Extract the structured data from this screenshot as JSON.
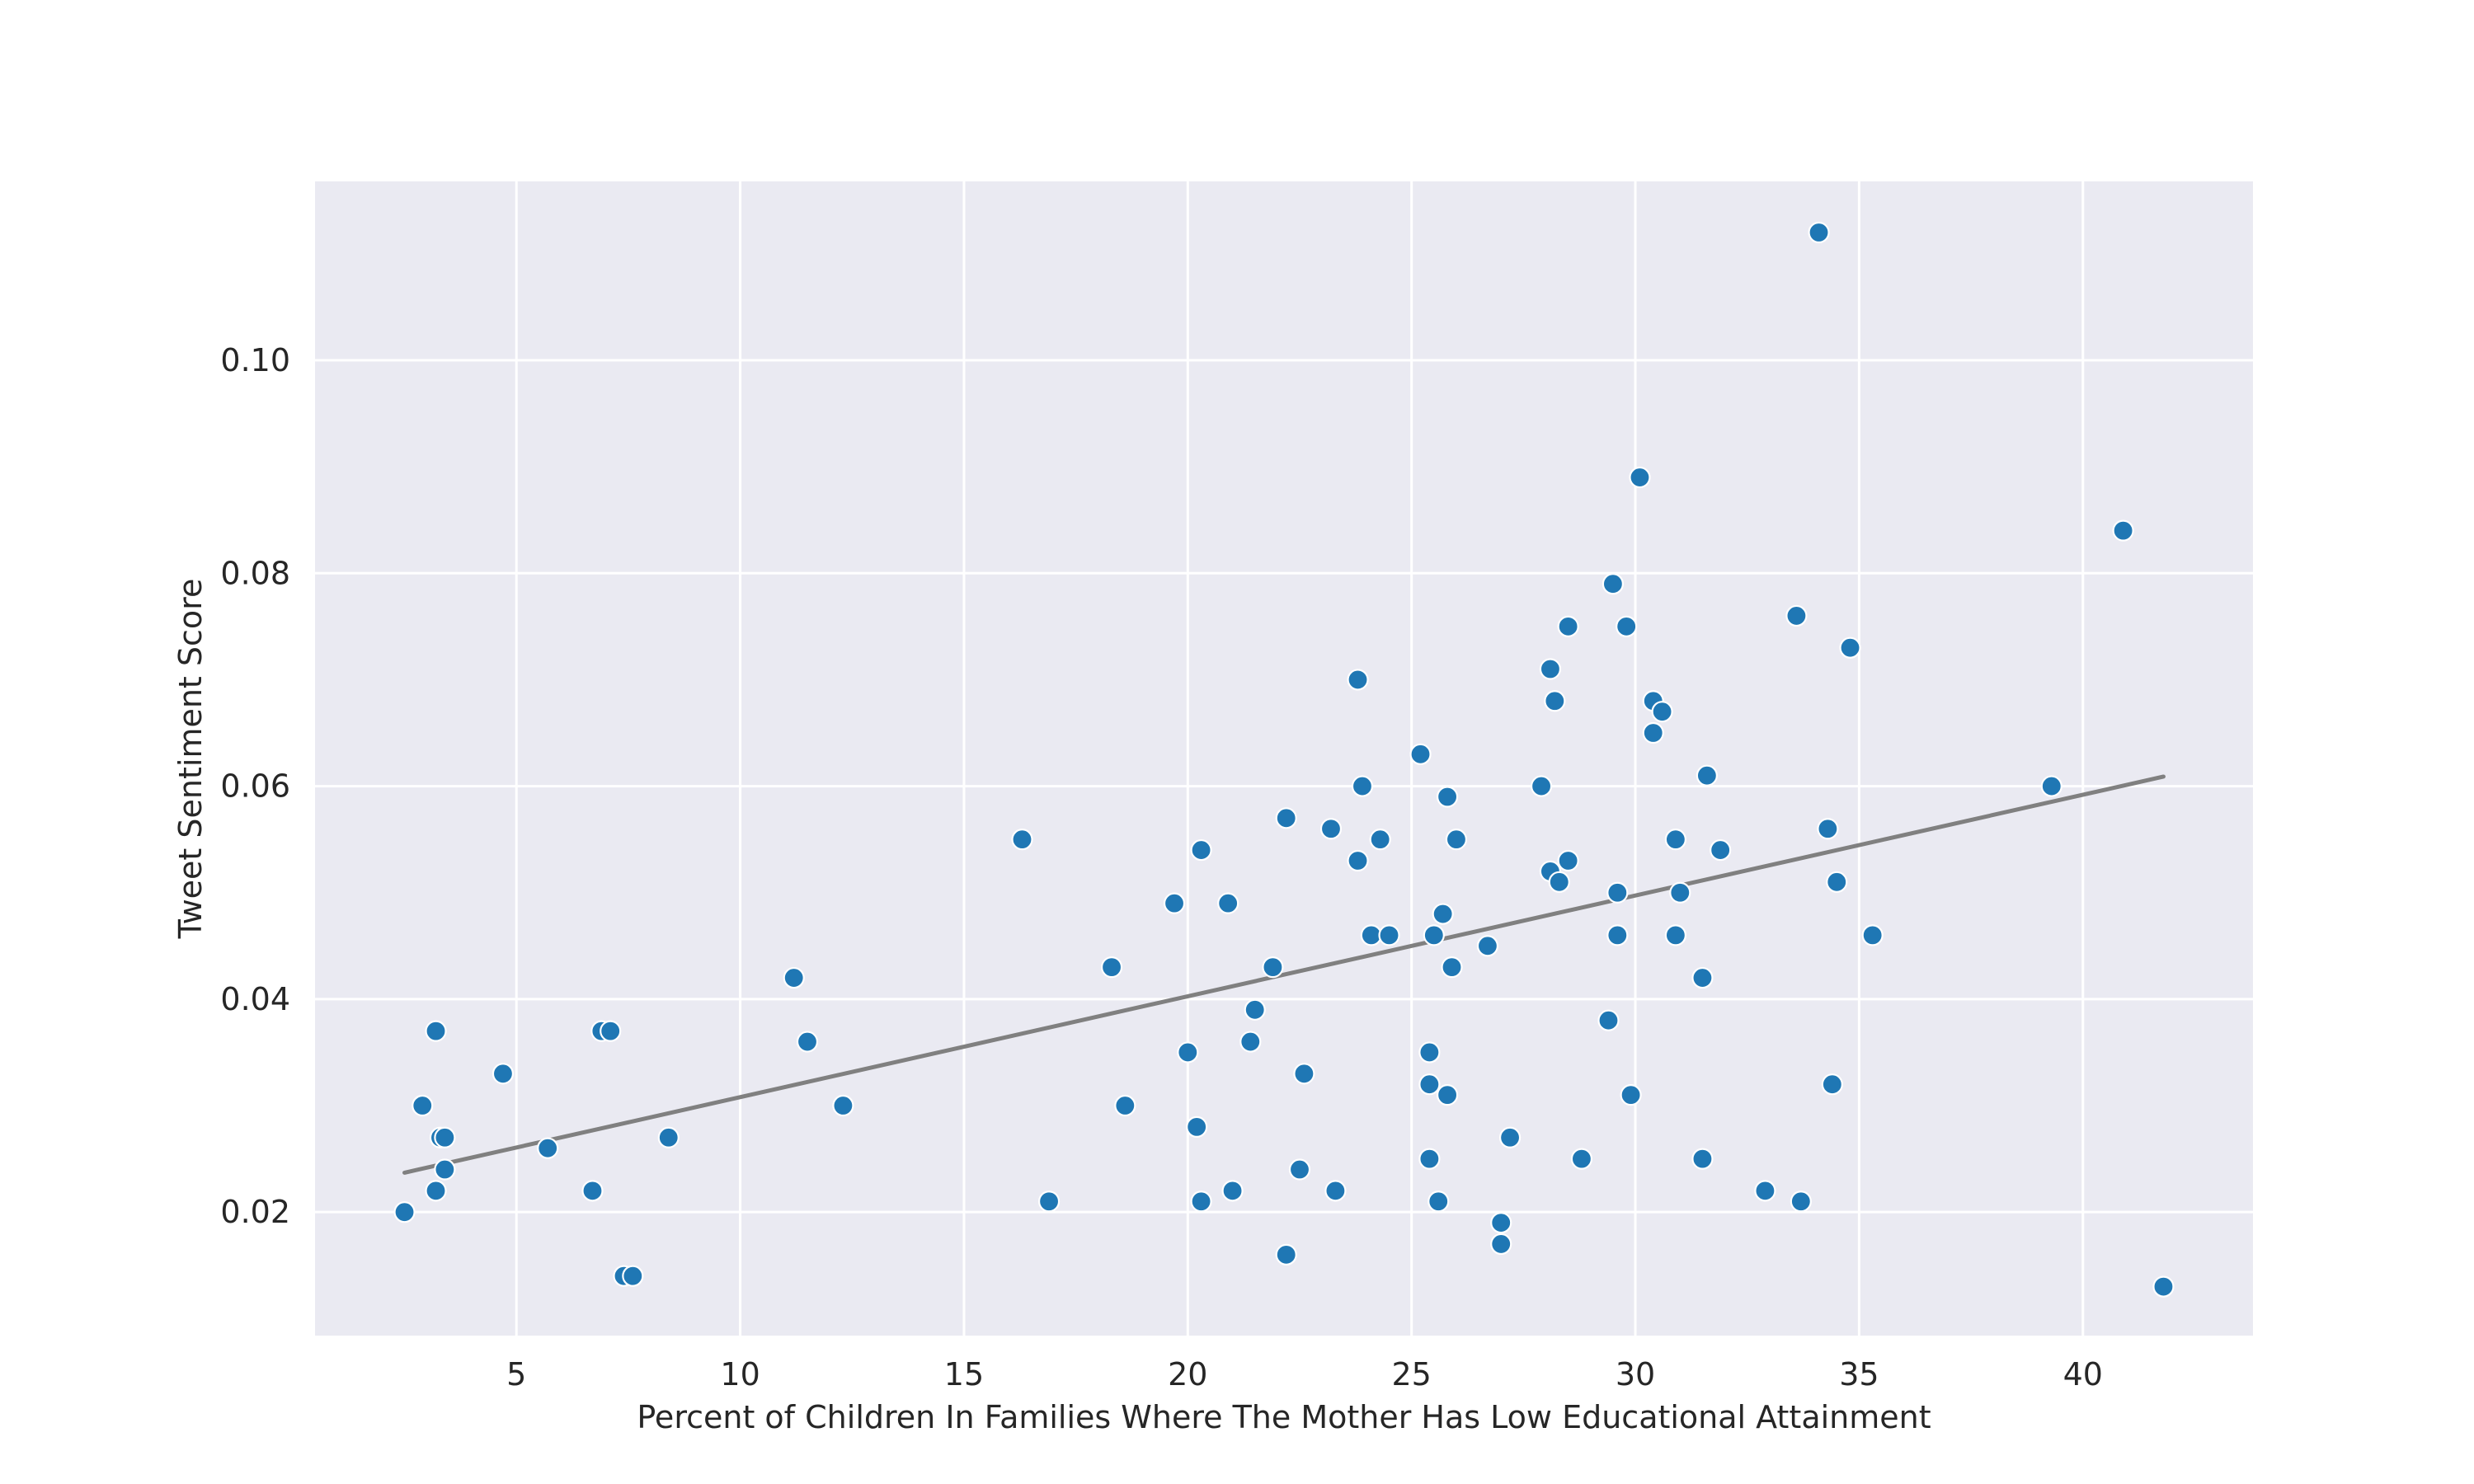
{
  "chart_data": {
    "type": "scatter",
    "title": "",
    "xlabel": "Percent of Children In Families Where The Mother Has Low Educational Attainment",
    "ylabel": "Tweet Sentiment Score",
    "xlim": [
      0.5,
      43.8
    ],
    "ylim": [
      0.0084,
      0.1168
    ],
    "xticks": [
      5,
      10,
      15,
      20,
      25,
      30,
      35,
      40
    ],
    "xtick_labels": [
      "5",
      "10",
      "15",
      "20",
      "25",
      "30",
      "35",
      "40"
    ],
    "yticks": [
      0.02,
      0.04,
      0.06,
      0.08,
      0.1
    ],
    "ytick_labels": [
      "0.02",
      "0.04",
      "0.06",
      "0.08",
      "0.10"
    ],
    "grid": true,
    "background": "#eaeaf2",
    "point_color": "#1f77b4",
    "trendline_color": "#808080",
    "trendline": {
      "x": [
        2.5,
        41.8
      ],
      "y": [
        0.0237,
        0.0609
      ]
    },
    "points": [
      {
        "x": 2.5,
        "y": 0.02
      },
      {
        "x": 2.9,
        "y": 0.03
      },
      {
        "x": 3.2,
        "y": 0.037
      },
      {
        "x": 3.2,
        "y": 0.022
      },
      {
        "x": 3.3,
        "y": 0.027
      },
      {
        "x": 3.4,
        "y": 0.027
      },
      {
        "x": 3.4,
        "y": 0.024
      },
      {
        "x": 4.7,
        "y": 0.033
      },
      {
        "x": 5.7,
        "y": 0.026
      },
      {
        "x": 6.7,
        "y": 0.022
      },
      {
        "x": 6.9,
        "y": 0.037
      },
      {
        "x": 7.1,
        "y": 0.037
      },
      {
        "x": 7.4,
        "y": 0.014
      },
      {
        "x": 7.6,
        "y": 0.014
      },
      {
        "x": 8.4,
        "y": 0.027
      },
      {
        "x": 11.2,
        "y": 0.042
      },
      {
        "x": 11.5,
        "y": 0.036
      },
      {
        "x": 12.3,
        "y": 0.03
      },
      {
        "x": 16.3,
        "y": 0.055
      },
      {
        "x": 16.9,
        "y": 0.021
      },
      {
        "x": 18.3,
        "y": 0.043
      },
      {
        "x": 18.6,
        "y": 0.03
      },
      {
        "x": 19.7,
        "y": 0.049
      },
      {
        "x": 20.0,
        "y": 0.035
      },
      {
        "x": 20.2,
        "y": 0.028
      },
      {
        "x": 20.3,
        "y": 0.054
      },
      {
        "x": 20.3,
        "y": 0.021
      },
      {
        "x": 20.9,
        "y": 0.049
      },
      {
        "x": 21.0,
        "y": 0.022
      },
      {
        "x": 21.4,
        "y": 0.036
      },
      {
        "x": 21.5,
        "y": 0.039
      },
      {
        "x": 21.9,
        "y": 0.043
      },
      {
        "x": 22.2,
        "y": 0.057
      },
      {
        "x": 22.2,
        "y": 0.016
      },
      {
        "x": 22.5,
        "y": 0.024
      },
      {
        "x": 22.6,
        "y": 0.033
      },
      {
        "x": 23.2,
        "y": 0.056
      },
      {
        "x": 23.3,
        "y": 0.022
      },
      {
        "x": 23.8,
        "y": 0.07
      },
      {
        "x": 23.8,
        "y": 0.053
      },
      {
        "x": 23.9,
        "y": 0.06
      },
      {
        "x": 24.1,
        "y": 0.046
      },
      {
        "x": 24.3,
        "y": 0.055
      },
      {
        "x": 24.5,
        "y": 0.046
      },
      {
        "x": 25.2,
        "y": 0.063
      },
      {
        "x": 25.4,
        "y": 0.035
      },
      {
        "x": 25.4,
        "y": 0.032
      },
      {
        "x": 25.4,
        "y": 0.025
      },
      {
        "x": 25.5,
        "y": 0.046
      },
      {
        "x": 25.6,
        "y": 0.021
      },
      {
        "x": 25.7,
        "y": 0.048
      },
      {
        "x": 25.8,
        "y": 0.059
      },
      {
        "x": 25.8,
        "y": 0.031
      },
      {
        "x": 25.9,
        "y": 0.043
      },
      {
        "x": 26.0,
        "y": 0.055
      },
      {
        "x": 26.7,
        "y": 0.045
      },
      {
        "x": 27.0,
        "y": 0.019
      },
      {
        "x": 27.0,
        "y": 0.017
      },
      {
        "x": 27.2,
        "y": 0.027
      },
      {
        "x": 27.9,
        "y": 0.06
      },
      {
        "x": 28.1,
        "y": 0.071
      },
      {
        "x": 28.1,
        "y": 0.052
      },
      {
        "x": 28.2,
        "y": 0.068
      },
      {
        "x": 28.3,
        "y": 0.051
      },
      {
        "x": 28.5,
        "y": 0.075
      },
      {
        "x": 28.5,
        "y": 0.053
      },
      {
        "x": 28.8,
        "y": 0.025
      },
      {
        "x": 29.4,
        "y": 0.038
      },
      {
        "x": 29.5,
        "y": 0.079
      },
      {
        "x": 29.6,
        "y": 0.05
      },
      {
        "x": 29.6,
        "y": 0.046
      },
      {
        "x": 29.8,
        "y": 0.075
      },
      {
        "x": 29.9,
        "y": 0.031
      },
      {
        "x": 30.1,
        "y": 0.089
      },
      {
        "x": 30.4,
        "y": 0.068
      },
      {
        "x": 30.4,
        "y": 0.065
      },
      {
        "x": 30.6,
        "y": 0.067
      },
      {
        "x": 30.9,
        "y": 0.055
      },
      {
        "x": 30.9,
        "y": 0.046
      },
      {
        "x": 31.0,
        "y": 0.05
      },
      {
        "x": 31.5,
        "y": 0.025
      },
      {
        "x": 31.5,
        "y": 0.042
      },
      {
        "x": 31.6,
        "y": 0.061
      },
      {
        "x": 31.9,
        "y": 0.054
      },
      {
        "x": 32.9,
        "y": 0.022
      },
      {
        "x": 33.6,
        "y": 0.076
      },
      {
        "x": 33.7,
        "y": 0.021
      },
      {
        "x": 34.1,
        "y": 0.112
      },
      {
        "x": 34.3,
        "y": 0.056
      },
      {
        "x": 34.4,
        "y": 0.032
      },
      {
        "x": 34.5,
        "y": 0.051
      },
      {
        "x": 34.8,
        "y": 0.073
      },
      {
        "x": 35.3,
        "y": 0.046
      },
      {
        "x": 39.3,
        "y": 0.06
      },
      {
        "x": 40.9,
        "y": 0.084
      },
      {
        "x": 41.8,
        "y": 0.013
      }
    ]
  }
}
